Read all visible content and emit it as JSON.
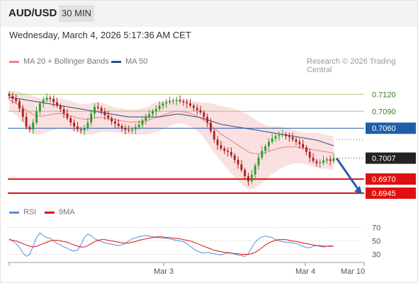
{
  "header": {
    "symbol": "AUD/USD",
    "timeframe": "30 MIN",
    "datetime": "Wednesday, March 4, 2026 5:17:36 AM CET"
  },
  "legend": {
    "ma20": "MA 20 + Bollinger Bands",
    "ma50": "MA 50",
    "rsi": "RSI",
    "ma9": "9MA",
    "credit": "Research © 2026 Trading Central"
  },
  "colors": {
    "ma20": "#f08080",
    "ma50": "#2a4c88",
    "band": "#f6c6c6",
    "up": "#2e9b2e",
    "down": "#b0201e",
    "resistance": "#a8c878",
    "pivot_line": "#1f5eaa",
    "support": "#e01010",
    "rsi": "#5b8bdc",
    "rsi_ma": "#e01010",
    "arrow": "#2a5da8"
  },
  "chart_data": [
    {
      "type": "candlestick",
      "title": "AUD/USD 30 MIN",
      "x_ticks": [
        "Mar 3",
        "Mar 4",
        "Mar 10"
      ],
      "ylim": [
        0.6935,
        0.7138
      ],
      "levels": [
        {
          "label": "0.7120",
          "value": 0.712,
          "kind": "resistance"
        },
        {
          "label": "0.7090",
          "value": 0.709,
          "kind": "resistance"
        },
        {
          "label": "0.7060",
          "value": 0.706,
          "kind": "pivot"
        },
        {
          "label": "0.7007",
          "value": 0.7007,
          "kind": "last"
        },
        {
          "label": "0.6970",
          "value": 0.697,
          "kind": "support"
        },
        {
          "label": "0.6945",
          "value": 0.6945,
          "kind": "support"
        }
      ],
      "close": [
        0.7117,
        0.7112,
        0.7108,
        0.7095,
        0.708,
        0.7062,
        0.7058,
        0.707,
        0.709,
        0.7104,
        0.711,
        0.7114,
        0.7112,
        0.7106,
        0.71,
        0.7094,
        0.7086,
        0.7078,
        0.707,
        0.7063,
        0.7058,
        0.7056,
        0.706,
        0.707,
        0.7086,
        0.7098,
        0.7096,
        0.709,
        0.7083,
        0.7078,
        0.7072,
        0.7068,
        0.7064,
        0.706,
        0.7057,
        0.7056,
        0.7058,
        0.7062,
        0.7066,
        0.7074,
        0.708,
        0.7085,
        0.709,
        0.7094,
        0.71,
        0.7104,
        0.7106,
        0.7108,
        0.7109,
        0.711,
        0.7108,
        0.7106,
        0.7104,
        0.71,
        0.7096,
        0.7092,
        0.7088,
        0.708,
        0.707,
        0.7055,
        0.704,
        0.703,
        0.7024,
        0.702,
        0.7018,
        0.7012,
        0.7004,
        0.6996,
        0.6986,
        0.6975,
        0.6966,
        0.6978,
        0.6994,
        0.7008,
        0.702,
        0.7028,
        0.7036,
        0.7042,
        0.7046,
        0.7048,
        0.7049,
        0.7046,
        0.7044,
        0.704,
        0.7036,
        0.7032,
        0.7026,
        0.7018,
        0.7008,
        0.7002,
        0.6998,
        0.6999,
        0.7003,
        0.7005,
        0.7002,
        0.7007
      ],
      "ma20": [
        0.711,
        0.7107,
        0.7104,
        0.71,
        0.7096,
        0.7092,
        0.7088,
        0.7084,
        0.7082,
        0.7081,
        0.7082,
        0.7083,
        0.7084,
        0.7085,
        0.7086,
        0.7086,
        0.7085,
        0.7084,
        0.7082,
        0.708,
        0.7078,
        0.7077,
        0.7076,
        0.7076,
        0.7077,
        0.7078,
        0.7079,
        0.7079,
        0.7078,
        0.7077,
        0.7076,
        0.7075,
        0.7074,
        0.7073,
        0.7072,
        0.7071,
        0.7071,
        0.7071,
        0.7071,
        0.7072,
        0.7073,
        0.7075,
        0.7077,
        0.7079,
        0.7081,
        0.7083,
        0.7085,
        0.7087,
        0.7089,
        0.709,
        0.709,
        0.7089,
        0.7088,
        0.7086,
        0.7084,
        0.7081,
        0.7078,
        0.7074,
        0.707,
        0.7065,
        0.706,
        0.7055,
        0.705,
        0.7046,
        0.7042,
        0.7038,
        0.7034,
        0.703,
        0.7026,
        0.7022,
        0.7018,
        0.7016,
        0.7015,
        0.7015,
        0.7016,
        0.7017,
        0.7019,
        0.7021,
        0.7023,
        0.7025,
        0.7026,
        0.7027,
        0.7027,
        0.7027,
        0.7027,
        0.7026,
        0.7025,
        0.7024,
        0.7023,
        0.7022,
        0.7021,
        0.702,
        0.7019,
        0.7018,
        0.7017,
        0.7016
      ],
      "ma50": [
        0.7115,
        0.7114,
        0.7113,
        0.7112,
        0.7111,
        0.711,
        0.7109,
        0.7108,
        0.7107,
        0.7106,
        0.7105,
        0.7104,
        0.7103,
        0.7102,
        0.7101,
        0.71,
        0.7099,
        0.7098,
        0.7097,
        0.7096,
        0.7095,
        0.7094,
        0.7093,
        0.7092,
        0.7091,
        0.709,
        0.7089,
        0.7088,
        0.7087,
        0.7086,
        0.7085,
        0.7084,
        0.7083,
        0.7082,
        0.7081,
        0.708,
        0.708,
        0.708,
        0.708,
        0.708,
        0.708,
        0.708,
        0.708,
        0.708,
        0.708,
        0.7081,
        0.7082,
        0.7083,
        0.7084,
        0.7085,
        0.7085,
        0.7084,
        0.7083,
        0.7082,
        0.7081,
        0.708,
        0.7079,
        0.7077,
        0.7075,
        0.7073,
        0.7071,
        0.7069,
        0.7067,
        0.7066,
        0.7065,
        0.7064,
        0.7063,
        0.7062,
        0.7061,
        0.706,
        0.7059,
        0.7058,
        0.7057,
        0.7056,
        0.7055,
        0.7054,
        0.7053,
        0.7052,
        0.7051,
        0.705,
        0.7049,
        0.7048,
        0.7047,
        0.7046,
        0.7045,
        0.7044,
        0.7043,
        0.7042,
        0.7041,
        0.704,
        0.7039,
        0.7037,
        0.7035,
        0.7033,
        0.7031,
        0.7029
      ],
      "bb_width": [
        0.0018,
        0.0019,
        0.0021,
        0.0024,
        0.0027,
        0.003,
        0.0032,
        0.0033,
        0.0033,
        0.0032,
        0.0031,
        0.003,
        0.0029,
        0.0028,
        0.0027,
        0.0026,
        0.0026,
        0.0026,
        0.0026,
        0.0026,
        0.0026,
        0.0026,
        0.0027,
        0.0027,
        0.0028,
        0.0028,
        0.0027,
        0.0026,
        0.0025,
        0.0024,
        0.0023,
        0.0022,
        0.0022,
        0.0022,
        0.0022,
        0.0022,
        0.0022,
        0.0022,
        0.0023,
        0.0023,
        0.0024,
        0.0025,
        0.0026,
        0.0026,
        0.0026,
        0.0025,
        0.0024,
        0.0023,
        0.0022,
        0.0021,
        0.0021,
        0.0021,
        0.0022,
        0.0023,
        0.0024,
        0.0026,
        0.0028,
        0.0031,
        0.0035,
        0.0039,
        0.0043,
        0.0046,
        0.0049,
        0.0052,
        0.0055,
        0.0058,
        0.006,
        0.0062,
        0.0064,
        0.0065,
        0.0066,
        0.0064,
        0.0061,
        0.0057,
        0.0053,
        0.0049,
        0.0045,
        0.0042,
        0.004,
        0.0038,
        0.0036,
        0.0034,
        0.0032,
        0.003,
        0.0029,
        0.0028,
        0.0028,
        0.0028,
        0.0029,
        0.003,
        0.0031,
        0.0031,
        0.0031,
        0.003,
        0.003,
        0.0029
      ]
    },
    {
      "type": "line",
      "title": "RSI",
      "ylim": [
        20,
        80
      ],
      "y_ticks": [
        "70",
        "50",
        "30"
      ],
      "series": [
        {
          "name": "RSI",
          "values": [
            53,
            50,
            46,
            40,
            32,
            27,
            30,
            42,
            55,
            62,
            58,
            55,
            54,
            50,
            46,
            44,
            41,
            39,
            36,
            35,
            36,
            44,
            55,
            60,
            58,
            53,
            51,
            49,
            47,
            46,
            45,
            44,
            43,
            44,
            46,
            50,
            53,
            55,
            56,
            57,
            58,
            57,
            56,
            55,
            55,
            54,
            54,
            53,
            52,
            51,
            50,
            49,
            46,
            42,
            38,
            35,
            33,
            32,
            33,
            32,
            31,
            30,
            29,
            31,
            33,
            32,
            30,
            29,
            28,
            27,
            31,
            40,
            48,
            53,
            56,
            57,
            56,
            55,
            52,
            50,
            49,
            48,
            48,
            47,
            46,
            44,
            42,
            40,
            40,
            42,
            43,
            42,
            41,
            42,
            43,
            42
          ]
        },
        {
          "name": "9MA",
          "values": [
            52,
            51,
            50,
            48,
            46,
            44,
            42,
            41,
            42,
            44,
            46,
            48,
            50,
            51,
            51,
            50,
            49,
            48,
            46,
            44,
            42,
            41,
            41,
            43,
            46,
            49,
            51,
            52,
            52,
            51,
            50,
            49,
            48,
            47,
            47,
            47,
            48,
            49,
            51,
            52,
            53,
            54,
            55,
            56,
            56,
            56,
            55,
            55,
            54,
            54,
            53,
            52,
            51,
            50,
            48,
            46,
            44,
            42,
            40,
            38,
            36,
            35,
            34,
            33,
            32,
            32,
            31,
            31,
            30,
            30,
            30,
            31,
            33,
            36,
            40,
            44,
            47,
            49,
            51,
            52,
            52,
            52,
            51,
            50,
            49,
            48,
            47,
            46,
            45,
            44,
            43,
            43,
            42,
            42,
            42,
            42
          ]
        }
      ]
    }
  ]
}
